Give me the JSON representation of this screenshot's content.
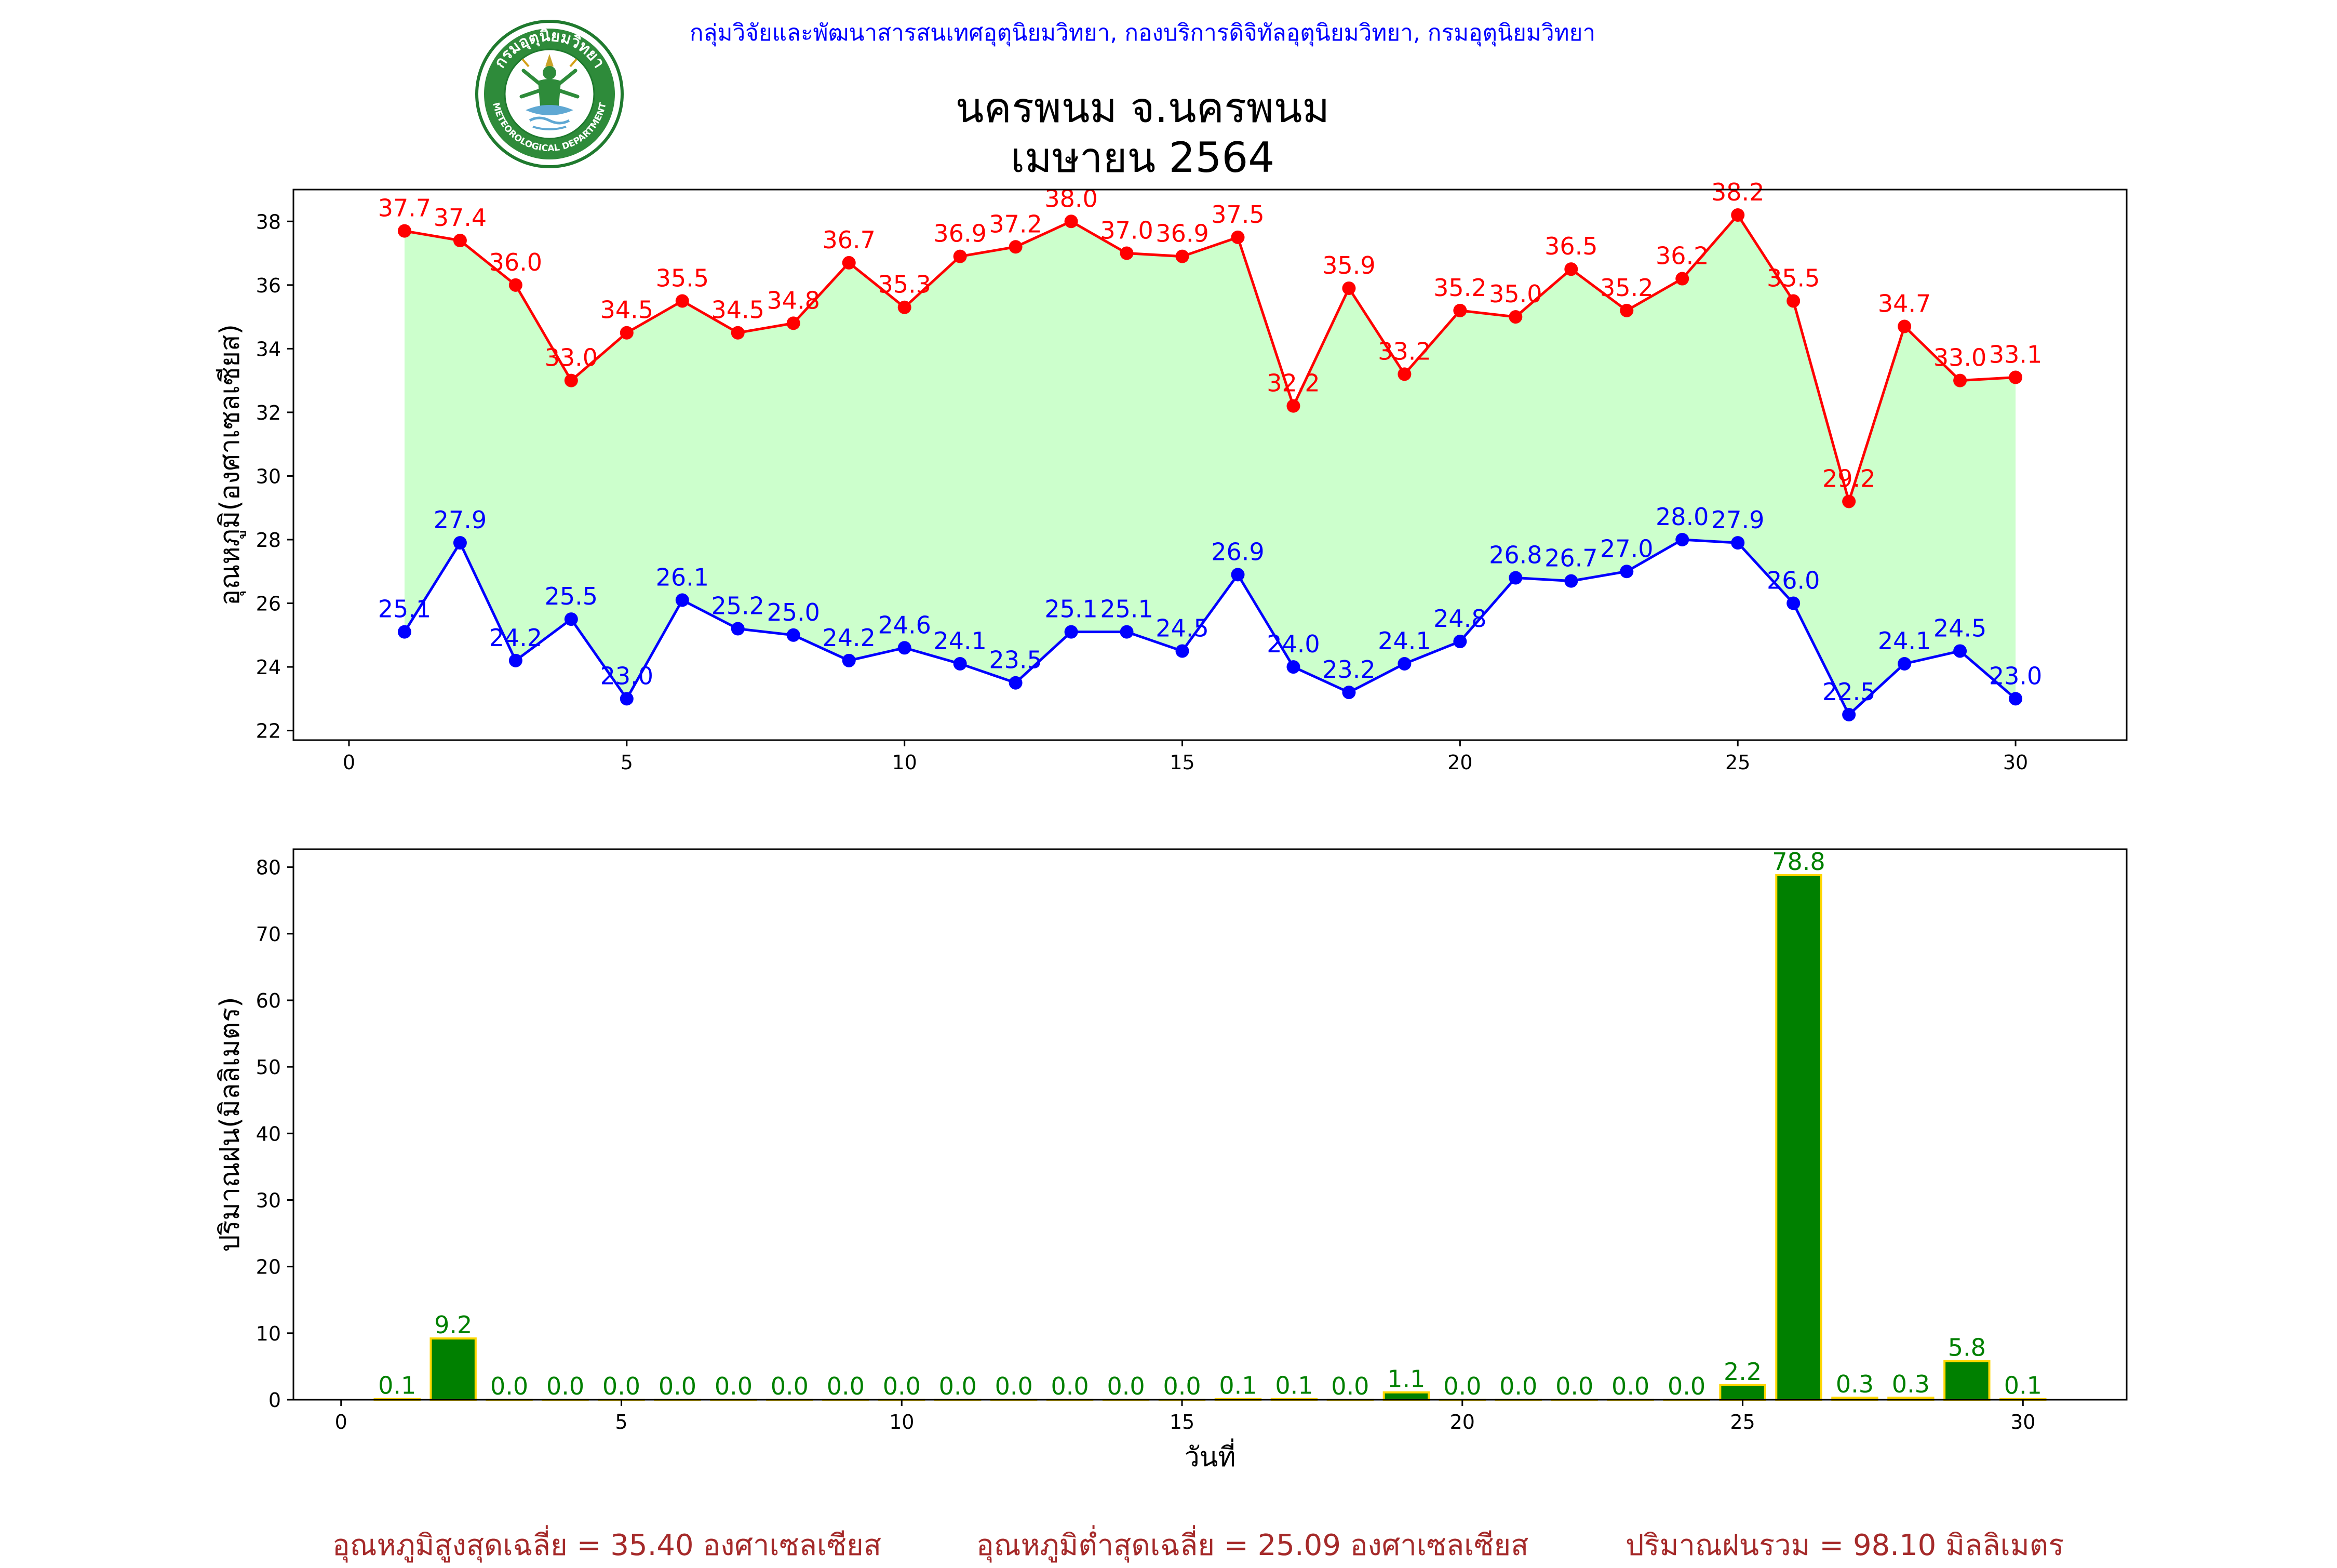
{
  "header": {
    "organization": "กลุ่มวิจัยและพัฒนาสารสนเทศอุตุนิยมวิทยา, กองบริการดิจิทัลอุตุนิยมวิทยา, กรมอุตุนิยมวิทยา",
    "title_line1": "นครพนม จ.นครพนม",
    "title_line2": "เมษายน 2564"
  },
  "logo": {
    "text_top": "กรมอุตุนิยมวิทยา",
    "text_bottom": "METEOROLOGICAL DEPARTMENT"
  },
  "colors": {
    "max_temp": "#ff0000",
    "min_temp": "#0000ff",
    "fill": "#ccffcc",
    "rain_bar": "#008000",
    "rain_edge": "#ffd700",
    "header_text": "#0000ff",
    "footer_text": "#a52a2a"
  },
  "chart_data": [
    {
      "type": "line",
      "ylabel": "อุณหภูมิ(องศาเซลเซียส)",
      "xlabel": "",
      "xlim": [
        -1,
        32
      ],
      "ylim": [
        21.7,
        39
      ],
      "xticks": [
        0,
        5,
        10,
        15,
        20,
        25,
        30
      ],
      "yticks": [
        22,
        24,
        26,
        28,
        30,
        32,
        34,
        36,
        38
      ],
      "grid": false,
      "x": [
        1,
        2,
        3,
        4,
        5,
        6,
        7,
        8,
        9,
        10,
        11,
        12,
        13,
        14,
        15,
        16,
        17,
        18,
        19,
        20,
        21,
        22,
        23,
        24,
        25,
        26,
        27,
        28,
        29,
        30
      ],
      "series": [
        {
          "key": "max",
          "values": [
            37.7,
            37.4,
            36.0,
            33.0,
            34.5,
            35.5,
            34.5,
            34.8,
            36.7,
            35.3,
            36.9,
            37.2,
            38.0,
            37.0,
            36.9,
            37.5,
            32.2,
            35.9,
            33.2,
            35.2,
            35.0,
            36.5,
            35.2,
            36.2,
            38.2,
            35.5,
            29.2,
            34.7,
            33.0,
            33.1
          ],
          "labels": [
            "37.7",
            "37.4",
            "36.0",
            "33.0",
            "34.5",
            "35.5",
            "34.5",
            "34.8",
            "36.7",
            "35.3",
            "36.9",
            "37.2",
            "38.0",
            "37.0",
            "36.9",
            "37.5",
            "32.2",
            "35.9",
            "33.2",
            "35.2",
            "35.0",
            "36.5",
            "35.2",
            "36.2",
            "38.2",
            "35.5",
            "29.2",
            "34.7",
            "33.0",
            "33.1"
          ]
        },
        {
          "key": "min",
          "values": [
            25.1,
            27.9,
            24.2,
            25.5,
            23.0,
            26.1,
            25.2,
            25.0,
            24.2,
            24.6,
            24.1,
            23.5,
            25.1,
            25.1,
            24.5,
            26.9,
            24.0,
            23.2,
            24.1,
            24.8,
            26.8,
            26.7,
            27.0,
            28.0,
            27.9,
            26.0,
            22.5,
            24.1,
            24.5,
            23.0
          ],
          "labels": [
            "25.1",
            "27.9",
            "24.2",
            "25.5",
            "23.0",
            "26.1",
            "25.2",
            "25.0",
            "24.2",
            "24.6",
            "24.1",
            "23.5",
            "25.1",
            "25.1",
            "24.5",
            "26.9",
            "24.0",
            "23.2",
            "24.1",
            "24.8",
            "26.8",
            "26.7",
            "27.0",
            "28.0",
            "27.9",
            "26.0",
            "22.5",
            "24.1",
            "24.5",
            "23.0"
          ]
        }
      ]
    },
    {
      "type": "bar",
      "ylabel": "ปริมาณฝน(มิลลิเมตร)",
      "xlabel": "วันที่",
      "xlim": [
        -0.85,
        31.85
      ],
      "ylim": [
        0,
        82.7
      ],
      "xticks": [
        0,
        5,
        10,
        15,
        20,
        25,
        30
      ],
      "yticks": [
        0,
        10,
        20,
        30,
        40,
        50,
        60,
        70,
        80
      ],
      "grid": false,
      "x": [
        1,
        2,
        3,
        4,
        5,
        6,
        7,
        8,
        9,
        10,
        11,
        12,
        13,
        14,
        15,
        16,
        17,
        18,
        19,
        20,
        21,
        22,
        23,
        24,
        25,
        26,
        27,
        28,
        29,
        30
      ],
      "values": [
        0.1,
        9.2,
        0.0,
        0.0,
        0.0,
        0.0,
        0.0,
        0.0,
        0.0,
        0.0,
        0.0,
        0.0,
        0.0,
        0.0,
        0.0,
        0.1,
        0.1,
        0.0,
        1.1,
        0.0,
        0.0,
        0.0,
        0.0,
        0.0,
        2.2,
        78.8,
        0.3,
        0.3,
        5.8,
        0.1
      ],
      "labels": [
        "0.1",
        "9.2",
        "0.0",
        "0.0",
        "0.0",
        "0.0",
        "0.0",
        "0.0",
        "0.0",
        "0.0",
        "0.0",
        "0.0",
        "0.0",
        "0.0",
        "0.0",
        "0.1",
        "0.1",
        "0.0",
        "1.1",
        "0.0",
        "0.0",
        "0.0",
        "0.0",
        "0.0",
        "2.2",
        "78.8",
        "0.3",
        "0.3",
        "5.8",
        "0.1"
      ]
    }
  ],
  "footer": {
    "avg_max": "อุณหภูมิสูงสุดเฉลี่ย = 35.40 องศาเซลเซียส",
    "avg_min": "อุณหภูมิต่ำสุดเฉลี่ย = 25.09 องศาเซลเซียส",
    "total_rain": "ปริมาณฝนรวม = 98.10 มิลลิเมตร"
  }
}
